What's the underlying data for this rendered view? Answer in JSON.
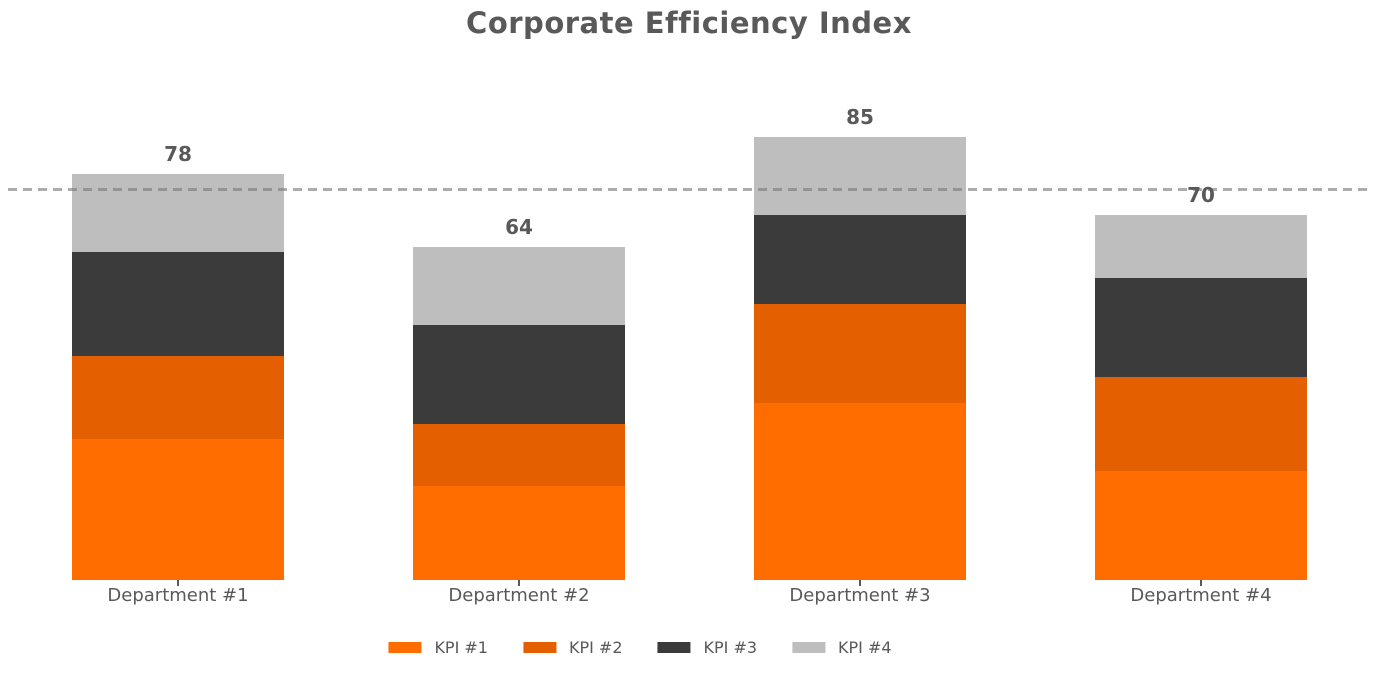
{
  "chart_data": {
    "type": "bar",
    "stacked": true,
    "title": "Corporate Efficiency Index",
    "categories": [
      "Department #1",
      "Department #2",
      "Department #3",
      "Department #4"
    ],
    "series": [
      {
        "name": "KPI #1",
        "color": "#FF6D00",
        "values": [
          27,
          18,
          34,
          21
        ]
      },
      {
        "name": "KPI #2",
        "color": "#E35F00",
        "values": [
          16,
          12,
          19,
          18
        ]
      },
      {
        "name": "KPI #3",
        "color": "#3B3B3B",
        "values": [
          20,
          19,
          17,
          19
        ]
      },
      {
        "name": "KPI #4",
        "color": "#BEBEBE",
        "values": [
          15,
          15,
          15,
          12
        ]
      }
    ],
    "bar_total_labels": [
      "78",
      "64",
      "85",
      "70"
    ],
    "reference_line": {
      "value": 75,
      "style": "dashed",
      "color": "#9A9A9A"
    },
    "legend_position": "bottom",
    "axes": {
      "y_axis_visible": false,
      "x_axis_line_visible": false,
      "grid": false
    },
    "text_color": "#595959",
    "background_color": "#FFFFFF"
  }
}
